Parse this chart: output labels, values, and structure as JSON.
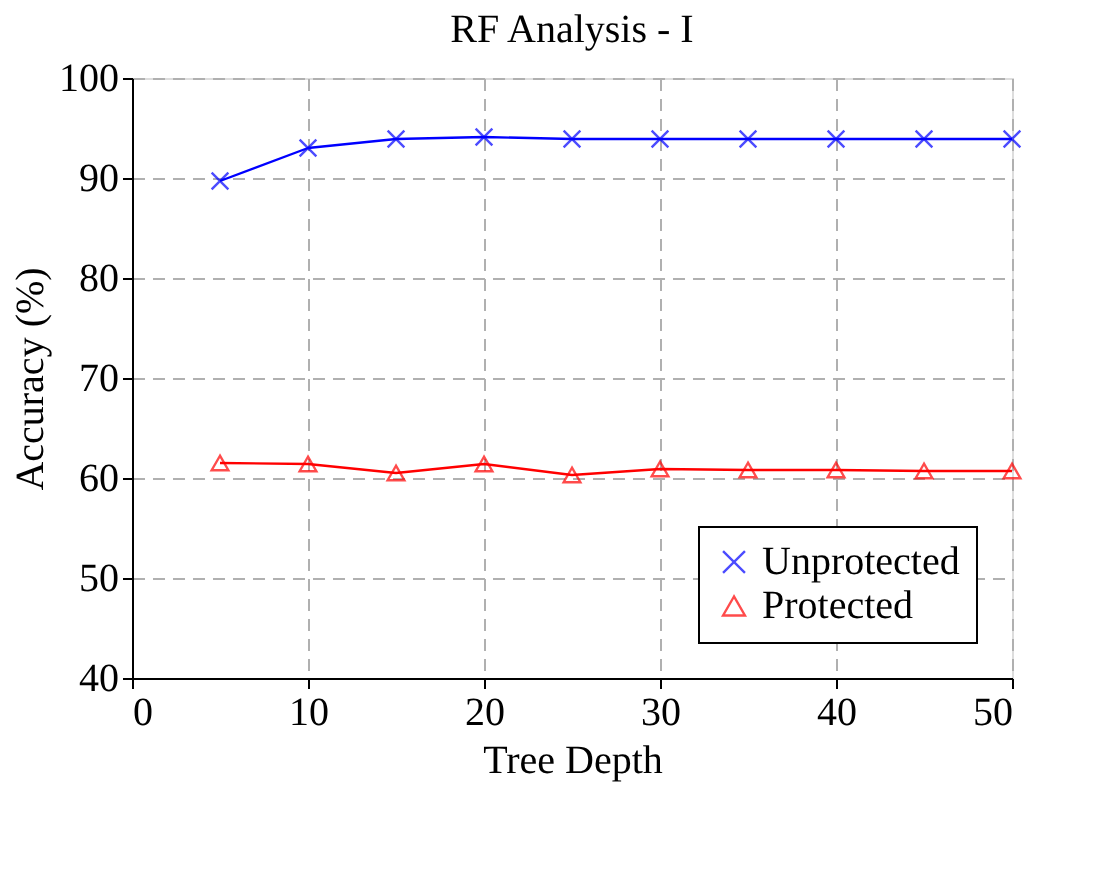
{
  "chart_data": {
    "type": "line",
    "title": "RF Analysis - I",
    "xlabel": "Tree Depth",
    "ylabel": "Accuracy (%)",
    "x": [
      5,
      10,
      15,
      20,
      25,
      30,
      35,
      40,
      45,
      50
    ],
    "series": [
      {
        "name": "Unprotected",
        "color": "#0000ff",
        "marker": "cross",
        "values": [
          89.7,
          93.0,
          93.9,
          94.1,
          93.9,
          93.9,
          93.9,
          93.9,
          93.9,
          93.9
        ]
      },
      {
        "name": "Protected",
        "color": "#ff0000",
        "marker": "triangle",
        "values": [
          61.5,
          61.4,
          60.5,
          61.4,
          60.3,
          60.9,
          60.8,
          60.8,
          60.7,
          60.7
        ]
      }
    ],
    "xlim": [
      0,
      50
    ],
    "xticks": [
      0,
      10,
      20,
      30,
      40,
      50
    ],
    "ylim": [
      40,
      100
    ],
    "yticks": [
      40,
      50,
      60,
      70,
      80,
      90,
      100
    ],
    "grid": true,
    "legend": "bottom right",
    "line_style": "solid"
  }
}
